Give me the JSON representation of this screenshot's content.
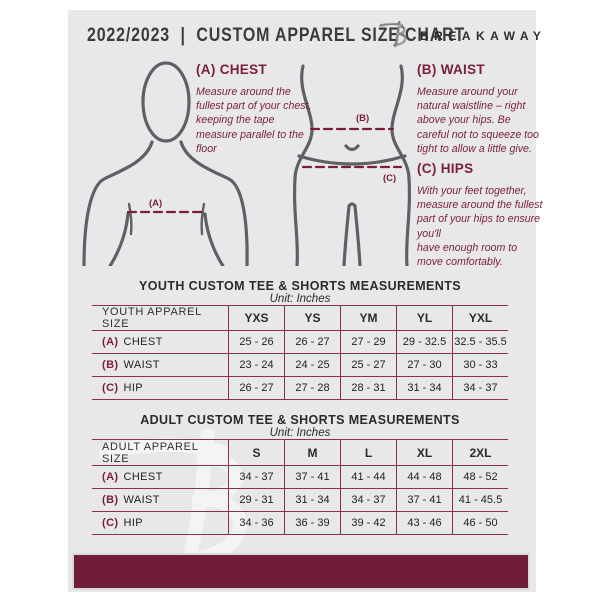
{
  "header": {
    "title": "2022/2023  |  CUSTOM APPAREL SIZE CHART",
    "brand": "BREAKAWAY",
    "logo": "breakaway-b-logo"
  },
  "instructions": {
    "chest": {
      "title": "(A) CHEST",
      "body": "Measure around the fullest part of your chest, keeping the tape measure parallel to the floor"
    },
    "waist": {
      "title": "(B) WAIST",
      "body": "Measure around your natural waistline – right above your hips. Be careful not to squeeze too tight to allow a little give."
    },
    "hips": {
      "title": "(C) HIPS",
      "body": "With your feet together, measure around the fullest part of your hips to ensure you'll\nhave enough room to move comfortably."
    }
  },
  "diagram_labels": {
    "chest": "(A)",
    "waist": "(B)",
    "hips": "(C)"
  },
  "youth_table": {
    "title": "YOUTH CUSTOM TEE & SHORTS MEASUREMENTS",
    "unit": "Unit: Inches",
    "header": [
      "YOUTH APPAREL SIZE",
      "YXS",
      "YS",
      "YM",
      "YL",
      "YXL"
    ],
    "rows": [
      {
        "key": "(A)",
        "label": "CHEST",
        "values": [
          "25 - 26",
          "26 - 27",
          "27 - 29",
          "29 - 32.5",
          "32.5 - 35.5"
        ]
      },
      {
        "key": "(B)",
        "label": "WAIST",
        "values": [
          "23 - 24",
          "24 - 25",
          "25 - 27",
          "27 - 30",
          "30 - 33"
        ]
      },
      {
        "key": "(C)",
        "label": "HIP",
        "values": [
          "26 - 27",
          "27 - 28",
          "28 - 31",
          "31 - 34",
          "34 - 37"
        ]
      }
    ]
  },
  "adult_table": {
    "title": "ADULT CUSTOM TEE & SHORTS MEASUREMENTS",
    "unit": "Unit: Inches",
    "header": [
      "ADULT APPAREL SIZE",
      "S",
      "M",
      "L",
      "XL",
      "2XL"
    ],
    "rows": [
      {
        "key": "(A)",
        "label": "CHEST",
        "values": [
          "34 - 37",
          "37 - 41",
          "41 - 44",
          "44 - 48",
          "48 - 52"
        ]
      },
      {
        "key": "(B)",
        "label": "WAIST",
        "values": [
          "29 - 31",
          "31 - 34",
          "34 - 37",
          "37 - 41",
          "41 - 45.5"
        ]
      },
      {
        "key": "(C)",
        "label": "HIP",
        "values": [
          "34 - 36",
          "36 - 39",
          "39 - 42",
          "43 - 46",
          "46 - 50"
        ]
      }
    ]
  },
  "colors": {
    "maroon": "#7a1e3a",
    "table_line": "#8e3048",
    "footer_bar": "#721d37",
    "card_background": "#e8e8ea",
    "figure_stroke": "#5f6063",
    "header_text": "#3b3b3b"
  }
}
